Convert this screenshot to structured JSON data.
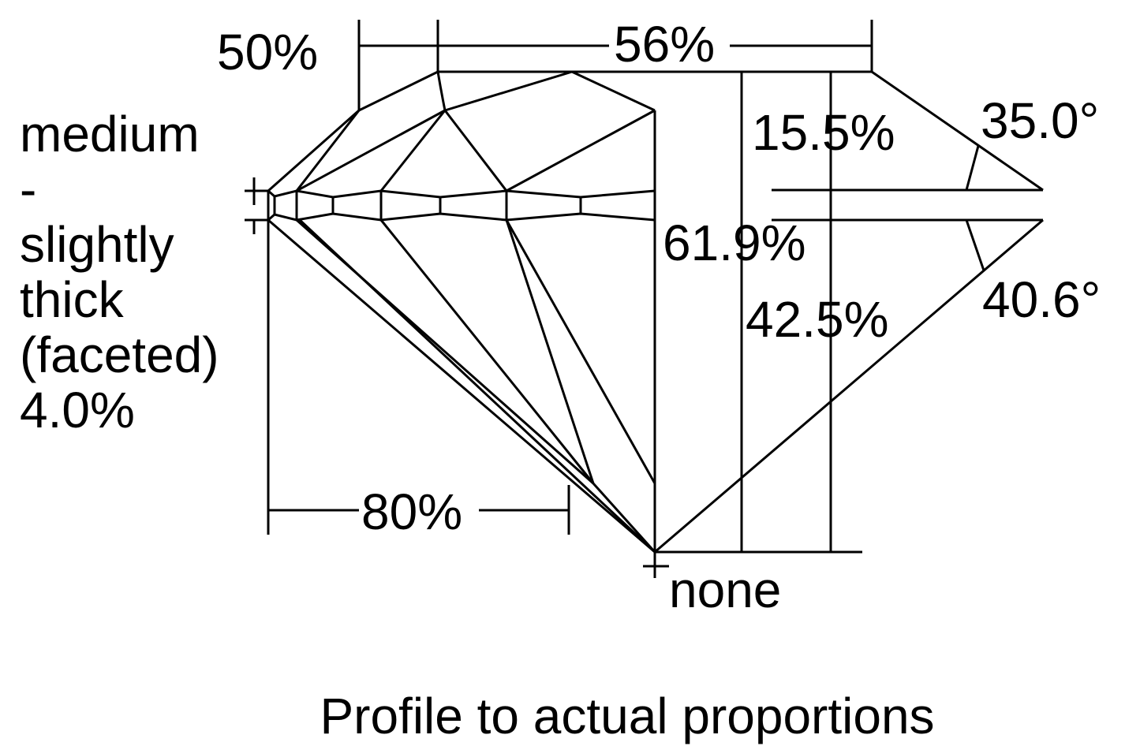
{
  "diagram": {
    "caption": "Profile to actual proportions",
    "labels": {
      "star_length": "50%",
      "table": "56%",
      "girdle_lines": [
        "medium",
        "-",
        "slightly",
        "thick",
        "(faceted)",
        "4.0%"
      ],
      "crown_height": "15.5%",
      "crown_angle": "35.0°",
      "total_depth": "61.9%",
      "pavilion_depth": "42.5%",
      "pavilion_angle": "40.6°",
      "lower_half_length": "80%",
      "culet": "none"
    },
    "colors": {
      "line": "#000000",
      "background": "#ffffff"
    }
  }
}
